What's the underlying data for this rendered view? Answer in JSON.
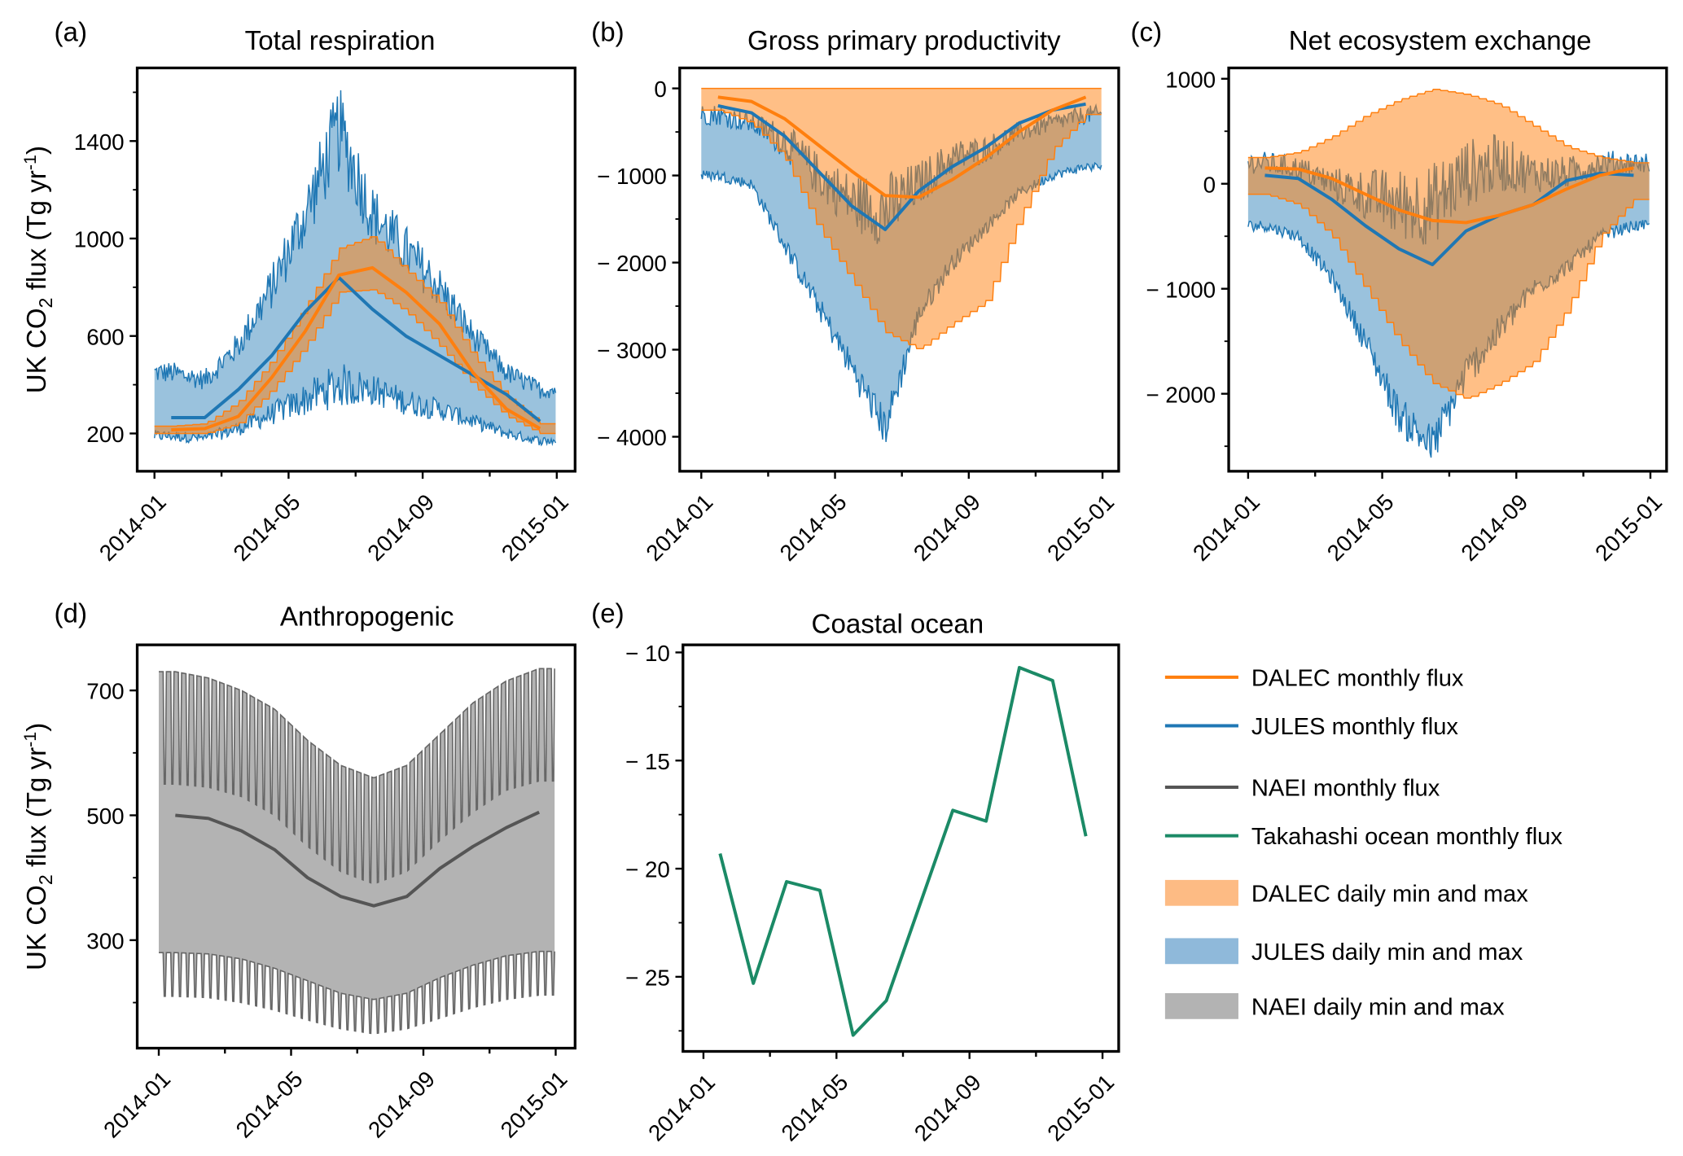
{
  "colors": {
    "dalec": "#ff7f0e",
    "jules": "#1f77b4",
    "naei": "#555555",
    "naei_fill": "#b3b3b3",
    "takahashi": "#1b8a66"
  },
  "ylabel": {
    "pre": "UK CO",
    "sub": "2",
    "mid": " flux (Tg yr",
    "sup": "-1",
    "post": ")"
  },
  "ylabel_d": {
    "pre": "UK CO",
    "sub": "2",
    "mid": " flux (Tg yr",
    "sup": "-1",
    "post": ")"
  },
  "legend": [
    {
      "label": "DALEC monthly flux",
      "type": "line",
      "color": "#ff7f0e"
    },
    {
      "label": "JULES monthly flux",
      "type": "line",
      "color": "#1f77b4"
    },
    {
      "label": "NAEI monthly flux",
      "type": "line",
      "color": "#555555"
    },
    {
      "label": "Takahashi ocean monthly flux",
      "type": "line",
      "color": "#1b8a66"
    },
    {
      "label": "DALEC daily min and max",
      "type": "patch",
      "color": "#fdbb84"
    },
    {
      "label": "JULES daily min and max",
      "type": "patch",
      "color": "#8fb9da"
    },
    {
      "label": "NAEI daily min and max",
      "type": "patch",
      "color": "#b3b3b3"
    }
  ],
  "chart_data": [
    {
      "id": "a",
      "panel_label": "(a)",
      "title": "Total respiration",
      "type": "line",
      "xlabel": "",
      "ylabel": "UK CO2 flux (Tg yr-1)",
      "xticks": [
        "2014-01",
        "2014-05",
        "2014-09",
        "2015-01"
      ],
      "yticks": [
        200,
        600,
        1000,
        1400
      ],
      "yticklabels": [
        "200",
        "600",
        "1000",
        "1400"
      ],
      "ylim": [
        45,
        1700
      ],
      "x_months": [
        0.5,
        1.5,
        2.5,
        3.5,
        4.5,
        5.5,
        6.5,
        7.5,
        8.5,
        9.5,
        10.5,
        11.5
      ],
      "series": [
        {
          "name": "JULES monthly flux",
          "values": [
            265,
            265,
            380,
            520,
            700,
            840,
            710,
            600,
            520,
            440,
            360,
            250
          ]
        },
        {
          "name": "DALEC monthly flux",
          "values": [
            215,
            220,
            270,
            430,
            620,
            850,
            880,
            780,
            650,
            450,
            300,
            220
          ]
        }
      ],
      "bands": [
        {
          "name": "JULES daily min and max",
          "min": [
            190,
            180,
            220,
            280,
            340,
            400,
            380,
            330,
            300,
            250,
            200,
            170
          ],
          "max": [
            450,
            420,
            560,
            800,
            1100,
            1450,
            1100,
            950,
            800,
            600,
            450,
            380
          ],
          "noisy": true
        },
        {
          "name": "DALEC daily min and max",
          "min": [
            200,
            200,
            240,
            380,
            560,
            780,
            790,
            700,
            560,
            400,
            270,
            200
          ],
          "max": [
            230,
            240,
            330,
            500,
            720,
            960,
            1010,
            870,
            740,
            520,
            350,
            240
          ],
          "noisy": false
        }
      ]
    },
    {
      "id": "b",
      "panel_label": "(b)",
      "title": "Gross primary productivity",
      "type": "line",
      "xlabel": "",
      "ylabel": "",
      "xticks": [
        "2014-01",
        "2014-05",
        "2014-09",
        "2015-01"
      ],
      "yticks": [
        0,
        -1000,
        -2000,
        -3000,
        -4000
      ],
      "yticklabels": [
        "0",
        "− 1000",
        "− 2000",
        "− 3000",
        "− 4000"
      ],
      "ylim": [
        -4396,
        235
      ],
      "x_months": [
        0.5,
        1.5,
        2.5,
        3.5,
        4.5,
        5.5,
        6.5,
        7.5,
        8.5,
        9.5,
        10.5,
        11.5
      ],
      "series": [
        {
          "name": "JULES monthly flux",
          "values": [
            -200,
            -280,
            -550,
            -950,
            -1350,
            -1620,
            -1180,
            -900,
            -680,
            -400,
            -250,
            -180
          ]
        },
        {
          "name": "DALEC monthly flux",
          "values": [
            -100,
            -150,
            -350,
            -650,
            -950,
            -1230,
            -1250,
            -1050,
            -800,
            -500,
            -250,
            -100
          ]
        }
      ],
      "bands": [
        {
          "name": "JULES daily min and max",
          "min": [
            -1000,
            -1100,
            -1800,
            -2500,
            -3200,
            -3900,
            -2600,
            -2000,
            -1600,
            -1200,
            -1000,
            -900
          ],
          "max": [
            -300,
            -400,
            -600,
            -1000,
            -1300,
            -1400,
            -1100,
            -800,
            -700,
            -500,
            -400,
            -300
          ],
          "noisy": true
        },
        {
          "name": "DALEC daily min and max",
          "min": [
            -250,
            -400,
            -800,
            -1600,
            -2200,
            -2800,
            -3000,
            -2700,
            -2450,
            -1500,
            -700,
            -300
          ],
          "max": [
            0,
            0,
            0,
            0,
            0,
            0,
            0,
            0,
            0,
            0,
            0,
            0
          ],
          "noisy": false
        }
      ]
    },
    {
      "id": "c",
      "panel_label": "(c)",
      "title": "Net ecosystem exchange",
      "type": "line",
      "xlabel": "",
      "ylabel": "",
      "xticks": [
        "2014-01",
        "2014-05",
        "2014-09",
        "2015-01"
      ],
      "yticks": [
        1000,
        0,
        -1000,
        -2000
      ],
      "yticklabels": [
        "1000",
        "0",
        "− 1000",
        "− 2000"
      ],
      "ylim": [
        -2738,
        1103
      ],
      "x_months": [
        0.5,
        1.5,
        2.5,
        3.5,
        4.5,
        5.5,
        6.5,
        7.5,
        8.5,
        9.5,
        10.5,
        11.5
      ],
      "series": [
        {
          "name": "JULES monthly flux",
          "values": [
            80,
            50,
            -150,
            -400,
            -620,
            -770,
            -450,
            -300,
            -200,
            30,
            100,
            80
          ]
        },
        {
          "name": "DALEC monthly flux",
          "values": [
            150,
            140,
            50,
            -100,
            -250,
            -350,
            -370,
            -300,
            -200,
            -50,
            80,
            150
          ]
        }
      ],
      "bands": [
        {
          "name": "JULES daily min and max",
          "min": [
            -400,
            -500,
            -900,
            -1500,
            -2200,
            -2500,
            -1800,
            -1400,
            -1000,
            -800,
            -500,
            -400
          ],
          "max": [
            200,
            150,
            0,
            -100,
            -200,
            -200,
            100,
            200,
            100,
            100,
            200,
            200
          ],
          "noisy": true
        },
        {
          "name": "DALEC daily min and max",
          "min": [
            -100,
            -200,
            -500,
            -1000,
            -1500,
            -1900,
            -2050,
            -1900,
            -1700,
            -1200,
            -500,
            -150
          ],
          "max": [
            250,
            300,
            450,
            650,
            800,
            900,
            850,
            750,
            550,
            350,
            250,
            200
          ],
          "noisy": false
        }
      ]
    },
    {
      "id": "d",
      "panel_label": "(d)",
      "title": "Anthropogenic",
      "type": "line",
      "xlabel": "",
      "ylabel": "UK CO2 flux (Tg yr-1)",
      "xticks": [
        "2014-01",
        "2014-05",
        "2014-09",
        "2015-01"
      ],
      "yticks": [
        300,
        500,
        700
      ],
      "yticklabels": [
        "300",
        "500",
        "700"
      ],
      "ylim": [
        127,
        773
      ],
      "x_months": [
        0.5,
        1.5,
        2.5,
        3.5,
        4.5,
        5.5,
        6.5,
        7.5,
        8.5,
        9.5,
        10.5,
        11.5
      ],
      "series": [
        {
          "name": "NAEI monthly flux",
          "values": [
            500,
            495,
            475,
            445,
            400,
            370,
            355,
            370,
            415,
            450,
            480,
            505
          ]
        }
      ],
      "naei_daily": {
        "name": "NAEI daily min and max",
        "max_weekday": [
          730,
          720,
          700,
          670,
          620,
          580,
          560,
          580,
          630,
          680,
          715,
          735
        ],
        "max_weekend": [
          550,
          545,
          530,
          500,
          450,
          410,
          390,
          410,
          460,
          505,
          540,
          555
        ],
        "min_weekday": [
          280,
          278,
          270,
          255,
          235,
          215,
          205,
          215,
          240,
          260,
          275,
          282
        ],
        "min_weekend": [
          210,
          208,
          200,
          188,
          172,
          158,
          150,
          158,
          175,
          192,
          205,
          212
        ]
      }
    },
    {
      "id": "e",
      "panel_label": "(e)",
      "title": "Coastal ocean",
      "type": "line",
      "xlabel": "",
      "ylabel": "",
      "xticks": [
        "2014-01",
        "2014-05",
        "2014-09",
        "2015-01"
      ],
      "yticks": [
        -10,
        -15,
        -20,
        -25
      ],
      "yticklabels": [
        "− 10",
        "− 15",
        "− 20",
        "− 25"
      ],
      "ylim": [
        -28.45,
        -9.65
      ],
      "x_months": [
        0.5,
        1.5,
        2.5,
        3.5,
        4.5,
        5.5,
        6.5,
        7.5,
        8.5,
        9.5,
        10.5,
        11.5
      ],
      "series": [
        {
          "name": "Takahashi ocean monthly flux",
          "values": [
            -19.3,
            -25.3,
            -20.6,
            -21.0,
            -27.7,
            -26.1,
            -21.7,
            -17.3,
            -17.8,
            -10.7,
            -11.3,
            -18.5
          ]
        }
      ]
    }
  ]
}
